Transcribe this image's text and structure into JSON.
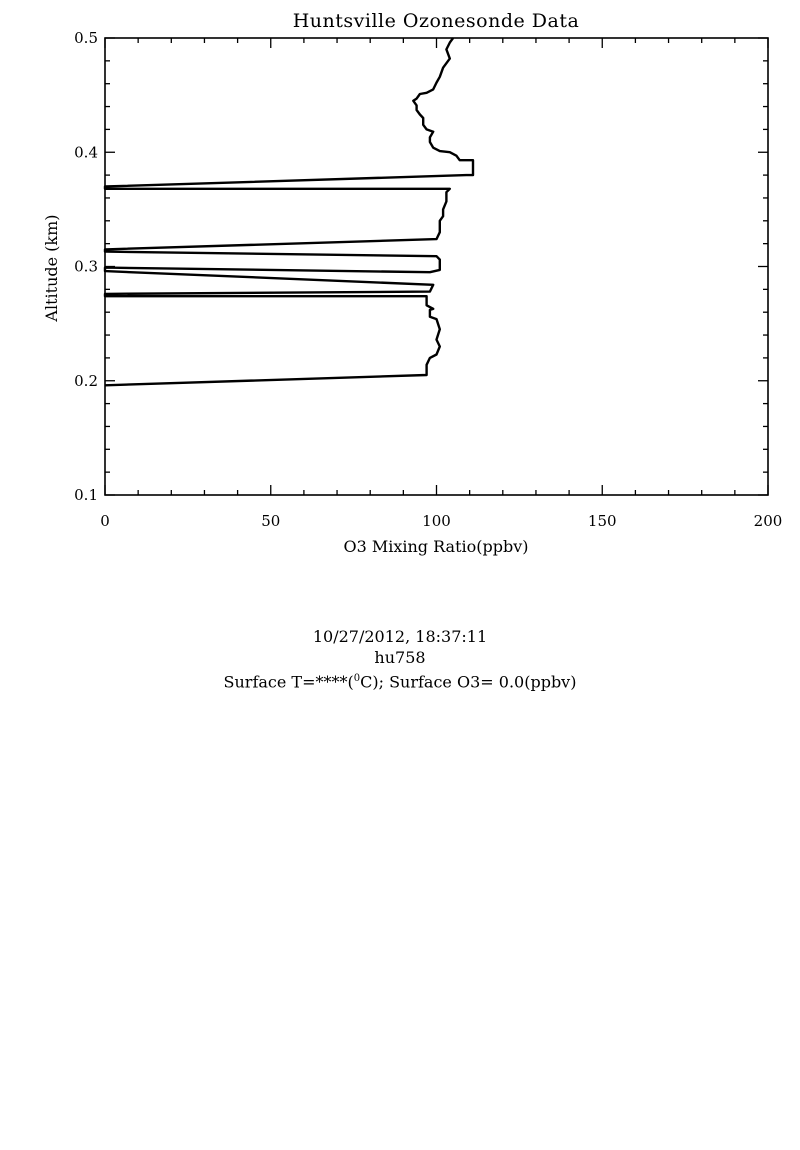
{
  "chart_data": {
    "type": "line",
    "title": "Huntsville Ozonesonde Data",
    "xlabel": "O3 Mixing Ratio(ppbv)",
    "ylabel": "Altitude (km)",
    "xlim": [
      0,
      200
    ],
    "ylim": [
      0.1,
      0.5
    ],
    "x_ticks": [
      "0",
      "50",
      "100",
      "150",
      "200"
    ],
    "y_ticks": [
      "0.1",
      "0.2",
      "0.3",
      "0.4",
      "0.5"
    ],
    "grid": false,
    "series": [
      {
        "color": "#000000",
        "points": [
          [
            0,
            0.196
          ],
          [
            97,
            0.205
          ],
          [
            97,
            0.214
          ],
          [
            98,
            0.22
          ],
          [
            100,
            0.223
          ],
          [
            101,
            0.23
          ],
          [
            100,
            0.236
          ],
          [
            101,
            0.245
          ],
          [
            100,
            0.254
          ],
          [
            98,
            0.256
          ],
          [
            98,
            0.262
          ],
          [
            99,
            0.263
          ],
          [
            97,
            0.266
          ],
          [
            97,
            0.274
          ],
          [
            0,
            0.274
          ],
          [
            0,
            0.276
          ],
          [
            98,
            0.278
          ],
          [
            99,
            0.284
          ],
          [
            0,
            0.296
          ],
          [
            0,
            0.299
          ],
          [
            98,
            0.295
          ],
          [
            101,
            0.297
          ],
          [
            101,
            0.306
          ],
          [
            100,
            0.309
          ],
          [
            0,
            0.313
          ],
          [
            0,
            0.315
          ],
          [
            100,
            0.324
          ],
          [
            101,
            0.33
          ],
          [
            101,
            0.34
          ],
          [
            102,
            0.344
          ],
          [
            102,
            0.35
          ],
          [
            103,
            0.357
          ],
          [
            103,
            0.365
          ],
          [
            104,
            0.368
          ],
          [
            0,
            0.368
          ],
          [
            0,
            0.37
          ],
          [
            109,
            0.38
          ],
          [
            111,
            0.38
          ],
          [
            111,
            0.393
          ],
          [
            107,
            0.393
          ],
          [
            106,
            0.397
          ],
          [
            104,
            0.4
          ],
          [
            101,
            0.401
          ],
          [
            99,
            0.404
          ],
          [
            98,
            0.409
          ],
          [
            98,
            0.413
          ],
          [
            99,
            0.418
          ],
          [
            97,
            0.42
          ],
          [
            96,
            0.424
          ],
          [
            96,
            0.43
          ],
          [
            95,
            0.433
          ],
          [
            94,
            0.437
          ],
          [
            94,
            0.441
          ],
          [
            93,
            0.445
          ],
          [
            94,
            0.447
          ],
          [
            95,
            0.451
          ],
          [
            97,
            0.452
          ],
          [
            99,
            0.455
          ],
          [
            100,
            0.461
          ],
          [
            101,
            0.466
          ],
          [
            102,
            0.474
          ],
          [
            104,
            0.482
          ],
          [
            103,
            0.49
          ],
          [
            104,
            0.496
          ],
          [
            105,
            0.504
          ]
        ]
      }
    ]
  },
  "info": {
    "datetime": "10/27/2012, 18:37:11",
    "station": "hu758",
    "surface_prefix": "Surface T=****(",
    "surface_sup": "0",
    "surface_suffix": "C); Surface O3=  0.0(ppbv)"
  }
}
